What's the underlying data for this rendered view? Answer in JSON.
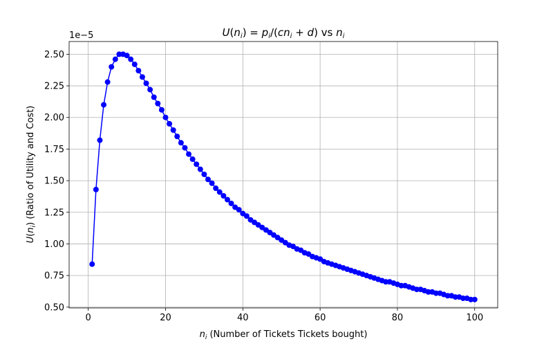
{
  "chart_data": {
    "type": "line",
    "title": "U(n_i) = p_i/(cn_i + d) vs n_i",
    "xlabel": "n_i (Number of Tickets Tickets bought)",
    "ylabel": "U(n_i) (Ratio of Utility and Cost)",
    "offset_label": "1e−5",
    "xlim": [
      -4.95,
      105.95
    ],
    "ylim": [
      0.4935,
      2.6005
    ],
    "y_scale_factor": 1e-05,
    "xticks": [
      0,
      20,
      40,
      60,
      80,
      100
    ],
    "yticks": [
      0.5,
      0.75,
      1.0,
      1.25,
      1.5,
      1.75,
      2.0,
      2.25,
      2.5
    ],
    "ytick_labels": [
      "0.50",
      "0.75",
      "1.00",
      "1.25",
      "1.50",
      "1.75",
      "2.00",
      "2.25",
      "2.50"
    ],
    "grid": true,
    "marker": "circle",
    "series": [
      {
        "color": "#0000ff",
        "x": [
          1,
          2,
          3,
          4,
          5,
          6,
          7,
          8,
          9,
          10,
          11,
          12,
          13,
          14,
          15,
          16,
          17,
          18,
          19,
          20,
          21,
          22,
          23,
          24,
          25,
          26,
          27,
          28,
          29,
          30,
          31,
          32,
          33,
          34,
          35,
          36,
          37,
          38,
          39,
          40,
          41,
          42,
          43,
          44,
          45,
          46,
          47,
          48,
          49,
          50,
          51,
          52,
          53,
          54,
          55,
          56,
          57,
          58,
          59,
          60,
          61,
          62,
          63,
          64,
          65,
          66,
          67,
          68,
          69,
          70,
          71,
          72,
          73,
          74,
          75,
          76,
          77,
          78,
          79,
          80,
          81,
          82,
          83,
          84,
          85,
          86,
          87,
          88,
          89,
          90,
          91,
          92,
          93,
          94,
          95,
          96,
          97,
          98,
          99,
          100
        ],
        "y": [
          0.84,
          1.43,
          1.82,
          2.1,
          2.28,
          2.4,
          2.46,
          2.5,
          2.5,
          2.49,
          2.46,
          2.42,
          2.37,
          2.32,
          2.27,
          2.22,
          2.16,
          2.11,
          2.06,
          2.0,
          1.95,
          1.9,
          1.85,
          1.8,
          1.76,
          1.71,
          1.67,
          1.63,
          1.59,
          1.55,
          1.51,
          1.48,
          1.44,
          1.41,
          1.38,
          1.35,
          1.32,
          1.29,
          1.27,
          1.24,
          1.22,
          1.19,
          1.17,
          1.15,
          1.13,
          1.11,
          1.09,
          1.07,
          1.05,
          1.03,
          1.01,
          0.99,
          0.98,
          0.96,
          0.95,
          0.93,
          0.92,
          0.9,
          0.89,
          0.88,
          0.86,
          0.85,
          0.84,
          0.83,
          0.82,
          0.81,
          0.8,
          0.79,
          0.78,
          0.77,
          0.76,
          0.75,
          0.74,
          0.73,
          0.72,
          0.71,
          0.7,
          0.7,
          0.69,
          0.68,
          0.67,
          0.67,
          0.66,
          0.65,
          0.64,
          0.64,
          0.63,
          0.62,
          0.62,
          0.61,
          0.61,
          0.6,
          0.59,
          0.59,
          0.58,
          0.58,
          0.57,
          0.57,
          0.56,
          0.56
        ]
      }
    ]
  }
}
